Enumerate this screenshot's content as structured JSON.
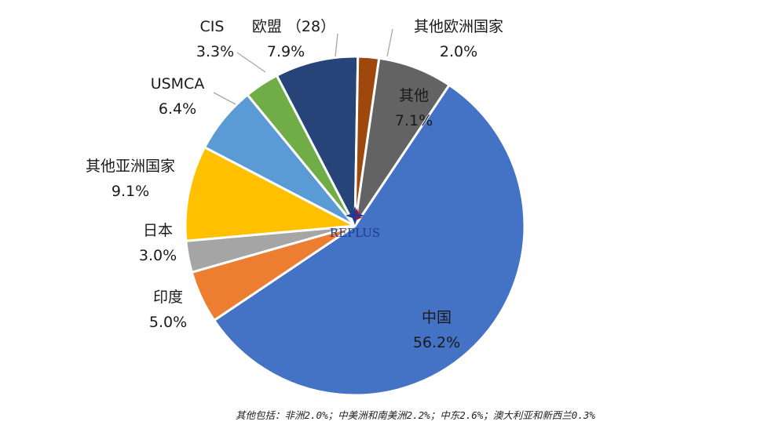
{
  "chart_data": {
    "type": "pie",
    "title": "",
    "slices": [
      {
        "label": "中国",
        "value_text": "56.2%",
        "value": 56.2,
        "color": "#4472C4"
      },
      {
        "label": "印度",
        "value_text": "5.0%",
        "value": 5.0,
        "color": "#ED7D31"
      },
      {
        "label": "日本",
        "value_text": "3.0%",
        "value": 3.0,
        "color": "#A5A5A5"
      },
      {
        "label": "其他亚洲国家",
        "value_text": "9.1%",
        "value": 9.1,
        "color": "#FFC000"
      },
      {
        "label": "USMCA",
        "value_text": "6.4%",
        "value": 6.4,
        "color": "#5B9BD5"
      },
      {
        "label": "CIS",
        "value_text": "3.3%",
        "value": 3.3,
        "color": "#70AD47"
      },
      {
        "label": "欧盟 （28）",
        "value_text": "7.9%",
        "value": 7.9,
        "color": "#264478"
      },
      {
        "label": "其他欧洲国家",
        "value_text": "2.0%",
        "value": 2.0,
        "color": "#9E480E"
      },
      {
        "label": "其他",
        "value_text": "7.1%",
        "value": 7.1,
        "color": "#636363"
      }
    ],
    "legend": "none",
    "footnote": "其他包括：非洲2.0%；中美洲和南美洲2.2%；中东2.6%；澳大利亚和新西兰0.3%"
  },
  "logo": {
    "text": "REPLUS",
    "icon": "replus-star-logo-icon",
    "colors": [
      "#1F3A93",
      "#D0021B"
    ]
  }
}
